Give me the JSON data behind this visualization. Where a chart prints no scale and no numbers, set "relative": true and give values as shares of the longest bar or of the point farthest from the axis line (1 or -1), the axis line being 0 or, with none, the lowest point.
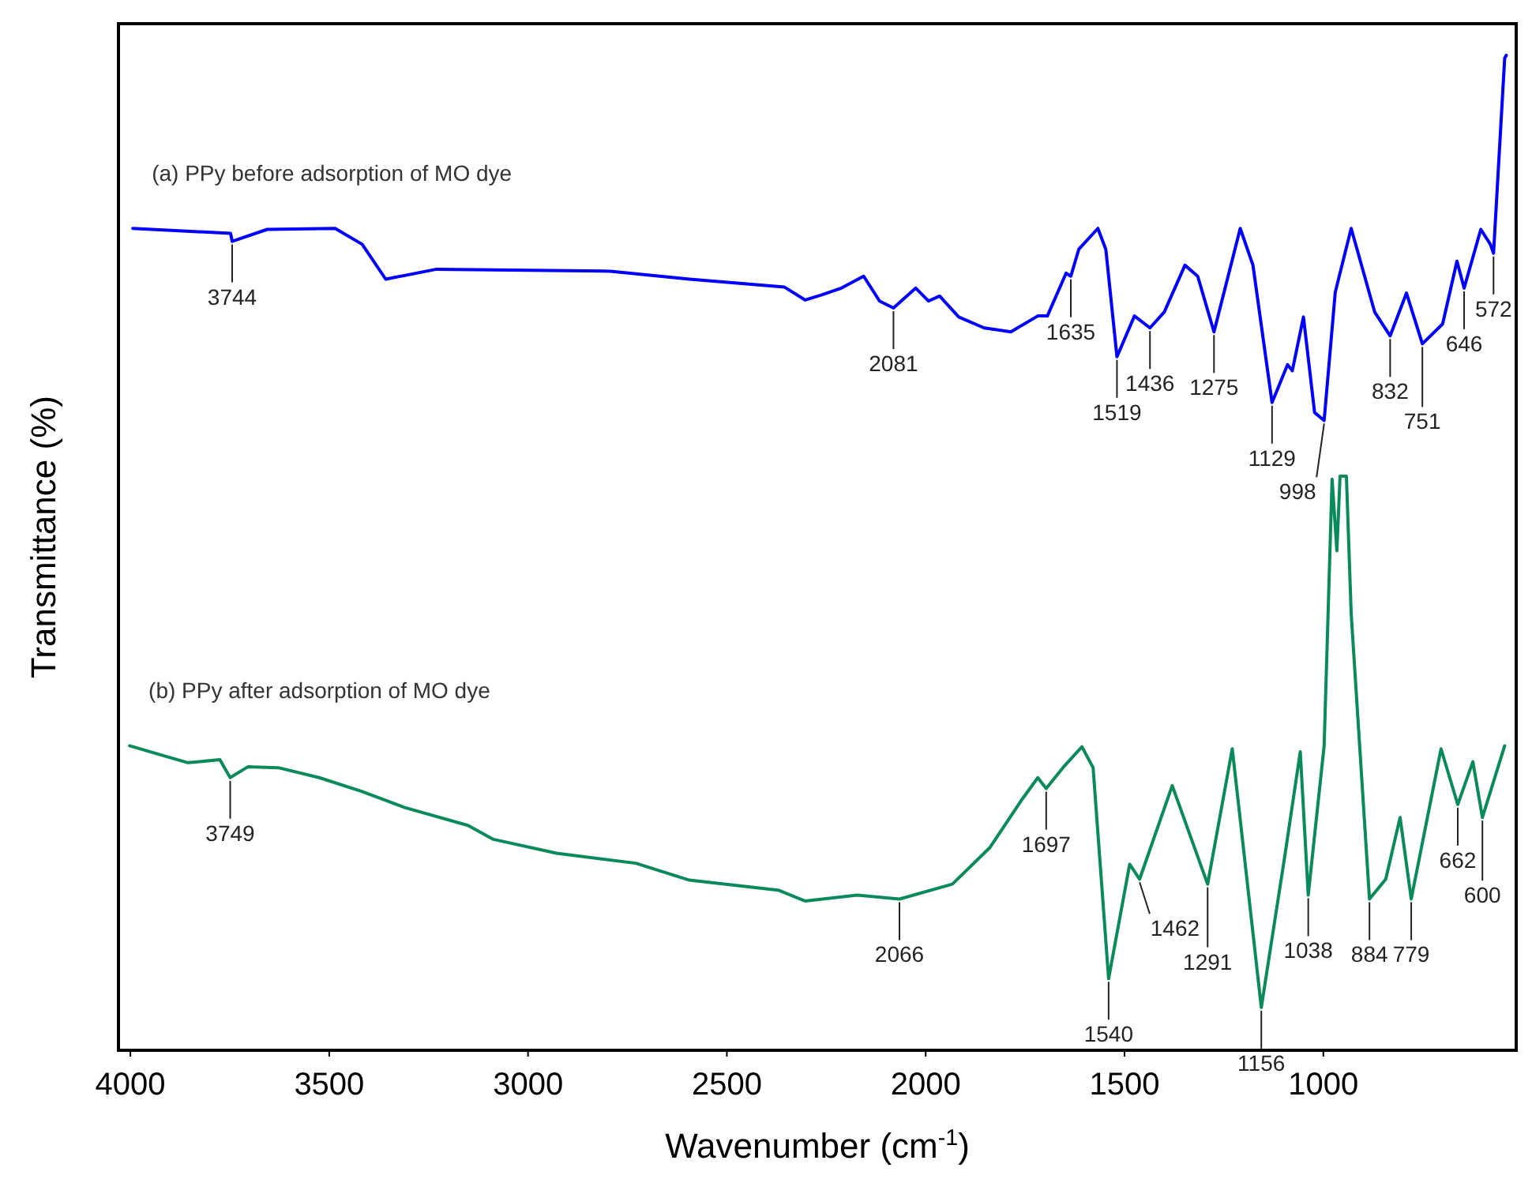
{
  "chart_data": {
    "type": "line",
    "relative": true,
    "xlabel": "Wavenumber (cm$^{-1}$)",
    "ylabel": "Transmittance (%)",
    "xlim": [
      4030,
      515
    ],
    "xticks": [
      4000,
      3500,
      3000,
      2500,
      2000,
      1500,
      1000
    ],
    "grid": false,
    "marker": "none",
    "line_style": "solid",
    "series": [
      {
        "name": "(a) PPy before adsorption of MO dye",
        "color": "#0000ff",
        "x": [
          3994,
          3748,
          3744,
          3656,
          3485,
          3417,
          3358,
          3230,
          2793,
          2594,
          2355,
          2303,
          2263,
          2212,
          2156,
          2116,
          2081,
          2025,
          1993,
          1965,
          1917,
          1853,
          1786,
          1718,
          1694,
          1647,
          1635,
          1615,
          1567,
          1547,
          1519,
          1475,
          1436,
          1400,
          1348,
          1316,
          1275,
          1209,
          1177,
          1129,
          1090,
          1078,
          1050,
          1022,
          998,
          970,
          930,
          871,
          832,
          791,
          751,
          700,
          664,
          646,
          604,
          580,
          572,
          544,
          540
        ],
        "values": [
          0.826,
          0.821,
          0.813,
          0.825,
          0.826,
          0.81,
          0.775,
          0.785,
          0.783,
          0.775,
          0.767,
          0.754,
          0.759,
          0.766,
          0.778,
          0.753,
          0.746,
          0.766,
          0.753,
          0.758,
          0.737,
          0.726,
          0.722,
          0.738,
          0.738,
          0.781,
          0.778,
          0.805,
          0.826,
          0.805,
          0.697,
          0.738,
          0.726,
          0.742,
          0.789,
          0.778,
          0.722,
          0.826,
          0.789,
          0.651,
          0.689,
          0.683,
          0.737,
          0.641,
          0.633,
          0.762,
          0.826,
          0.742,
          0.718,
          0.761,
          0.71,
          0.73,
          0.793,
          0.766,
          0.825,
          0.81,
          0.801,
          0.997,
          1.0
        ]
      },
      {
        "name": "(b) PPy after adsorption of MO dye",
        "color": "#0a8a5a",
        "x": [
          4002,
          3907,
          3855,
          3775,
          3749,
          3704,
          3628,
          3525,
          3417,
          3310,
          3151,
          3087,
          2928,
          2729,
          2594,
          2371,
          2303,
          2172,
          2066,
          1933,
          1838,
          1758,
          1718,
          1697,
          1655,
          1607,
          1579,
          1540,
          1487,
          1462,
          1380,
          1291,
          1229,
          1156,
          1097,
          1058,
          1038,
          998,
          978,
          966,
          958,
          942,
          930,
          884,
          843,
          807,
          779,
          704,
          662,
          624,
          600,
          544
        ],
        "values": [
          0.306,
          0.295,
          0.289,
          0.292,
          0.274,
          0.285,
          0.284,
          0.274,
          0.26,
          0.244,
          0.226,
          0.212,
          0.198,
          0.188,
          0.171,
          0.161,
          0.15,
          0.156,
          0.152,
          0.167,
          0.204,
          0.252,
          0.274,
          0.263,
          0.284,
          0.305,
          0.284,
          0.072,
          0.187,
          0.172,
          0.266,
          0.167,
          0.303,
          0.043,
          0.195,
          0.3,
          0.156,
          0.306,
          0.574,
          0.502,
          0.577,
          0.577,
          0.439,
          0.152,
          0.172,
          0.234,
          0.152,
          0.303,
          0.247,
          0.29,
          0.234,
          0.306
        ]
      }
    ],
    "annotations": [
      {
        "text": "3744",
        "x": 3744,
        "y": 0.813
      },
      {
        "text": "2081",
        "x": 2081,
        "y": 0.746
      },
      {
        "text": "1635",
        "x": 1635,
        "y": 0.778
      },
      {
        "text": "1519",
        "x": 1519,
        "y": 0.697
      },
      {
        "text": "1436",
        "x": 1436,
        "y": 0.726
      },
      {
        "text": "1275",
        "x": 1275,
        "y": 0.722
      },
      {
        "text": "1129",
        "x": 1129,
        "y": 0.651
      },
      {
        "text": "998",
        "x": 998,
        "y": 0.633
      },
      {
        "text": "832",
        "x": 832,
        "y": 0.718
      },
      {
        "text": "751",
        "x": 751,
        "y": 0.71
      },
      {
        "text": "646",
        "x": 646,
        "y": 0.766
      },
      {
        "text": "572",
        "x": 572,
        "y": 0.801
      },
      {
        "text": "3749",
        "x": 3749,
        "y": 0.274
      },
      {
        "text": "2066",
        "x": 2066,
        "y": 0.152
      },
      {
        "text": "1697",
        "x": 1697,
        "y": 0.263
      },
      {
        "text": "1540",
        "x": 1540,
        "y": 0.072
      },
      {
        "text": "1462",
        "x": 1462,
        "y": 0.172
      },
      {
        "text": "1291",
        "x": 1291,
        "y": 0.167
      },
      {
        "text": "1156",
        "x": 1156,
        "y": 0.043
      },
      {
        "text": "1038",
        "x": 1038,
        "y": 0.156
      },
      {
        "text": "884",
        "x": 884,
        "y": 0.152
      },
      {
        "text": "779",
        "x": 779,
        "y": 0.152
      },
      {
        "text": "662",
        "x": 662,
        "y": 0.247
      },
      {
        "text": "600",
        "x": 600,
        "y": 0.234
      }
    ]
  }
}
